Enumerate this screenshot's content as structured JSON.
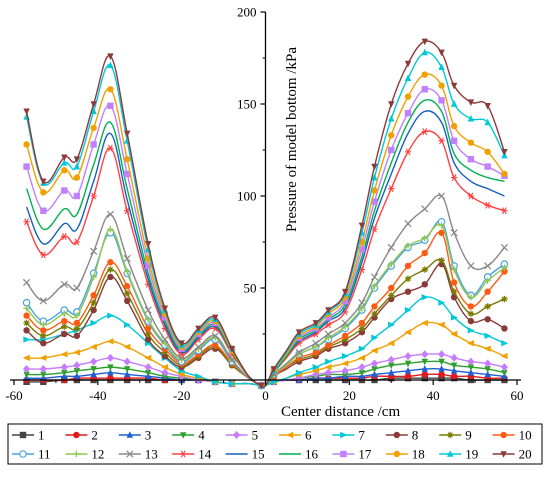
{
  "chart_data": {
    "type": "line",
    "title": "",
    "xlabel": "Center distance /cm",
    "ylabel": "Pressure of model bottom /kPa",
    "xlim": [
      -60,
      60
    ],
    "ylim": [
      0,
      200
    ],
    "xticks": [
      -60,
      -40,
      -20,
      0,
      20,
      40,
      60
    ],
    "yticks": [
      0,
      50,
      100,
      150,
      200
    ],
    "grid": false,
    "legend_position": "bottom",
    "x": [
      -57,
      -53,
      -48,
      -45,
      -41,
      -37,
      -33,
      -28,
      -24,
      -20,
      -16,
      -12,
      -8,
      -4,
      -1,
      0,
      2,
      5,
      8,
      12,
      15,
      19,
      23,
      26,
      30,
      34,
      38,
      42,
      45,
      49,
      53,
      57
    ],
    "series": [
      {
        "name": "1",
        "color": "#444444",
        "marker": "square",
        "values": [
          -1,
          -1,
          0,
          0,
          0,
          0,
          0,
          0,
          0,
          0,
          0,
          -1,
          -2,
          -2,
          -3,
          -3,
          -1,
          0,
          0,
          0,
          0,
          0,
          0,
          0,
          1,
          1,
          1,
          1,
          1,
          0,
          0,
          0
        ]
      },
      {
        "name": "2",
        "color": "#e31a1c",
        "marker": "circle",
        "values": [
          0,
          0,
          0,
          1,
          1,
          1,
          1,
          1,
          0,
          0,
          0,
          -1,
          -2,
          -2,
          -3,
          -3,
          -1,
          0,
          0,
          1,
          1,
          1,
          1,
          2,
          2,
          2,
          3,
          3,
          2,
          2,
          1,
          1
        ]
      },
      {
        "name": "3",
        "color": "#1f5fd6",
        "marker": "triangle-up",
        "values": [
          1,
          1,
          2,
          2,
          3,
          4,
          3,
          2,
          1,
          0,
          0,
          -1,
          -2,
          -2,
          -3,
          -3,
          -1,
          0,
          0,
          1,
          1,
          2,
          2,
          3,
          4,
          5,
          6,
          6,
          5,
          4,
          3,
          2
        ]
      },
      {
        "name": "4",
        "color": "#2ca02c",
        "marker": "triangle-down",
        "values": [
          3,
          3,
          4,
          5,
          6,
          7,
          6,
          4,
          2,
          1,
          0,
          -1,
          -2,
          -2,
          -3,
          -3,
          -1,
          0,
          1,
          2,
          3,
          3,
          4,
          6,
          8,
          9,
          10,
          10,
          8,
          7,
          6,
          4
        ]
      },
      {
        "name": "5",
        "color": "#c77cff",
        "marker": "diamond",
        "values": [
          6,
          6,
          7,
          8,
          10,
          12,
          10,
          7,
          4,
          2,
          0,
          -1,
          -2,
          -2,
          -3,
          -3,
          -1,
          0,
          1,
          3,
          4,
          5,
          7,
          9,
          11,
          13,
          14,
          14,
          12,
          10,
          9,
          7
        ]
      },
      {
        "name": "6",
        "color": "#f0a000",
        "marker": "tri-left",
        "values": [
          12,
          12,
          14,
          15,
          18,
          21,
          18,
          12,
          7,
          3,
          1,
          -1,
          -2,
          -2,
          -3,
          -3,
          -1,
          1,
          3,
          5,
          7,
          9,
          12,
          16,
          20,
          26,
          31,
          30,
          25,
          20,
          17,
          13
        ]
      },
      {
        "name": "7",
        "color": "#00c8d8",
        "marker": "tri-right",
        "values": [
          22,
          22,
          25,
          27,
          31,
          35,
          30,
          20,
          12,
          5,
          2,
          -1,
          -2,
          -2,
          -3,
          -3,
          -1,
          1,
          4,
          7,
          10,
          13,
          17,
          23,
          30,
          38,
          45,
          42,
          34,
          27,
          24,
          20
        ]
      },
      {
        "name": "8",
        "color": "#8b3a3a",
        "marker": "circle",
        "values": [
          27,
          20,
          25,
          24,
          38,
          56,
          43,
          22,
          13,
          7,
          12,
          17,
          8,
          1,
          -3,
          -3,
          2,
          6,
          10,
          13,
          17,
          20,
          26,
          34,
          44,
          48,
          52,
          63,
          45,
          32,
          33,
          28
        ]
      },
      {
        "name": "9",
        "color": "#7a7a00",
        "marker": "star",
        "values": [
          31,
          24,
          29,
          28,
          42,
          60,
          47,
          25,
          15,
          8,
          13,
          18,
          8,
          1,
          -3,
          -3,
          2,
          7,
          11,
          14,
          18,
          22,
          28,
          36,
          46,
          55,
          60,
          65,
          48,
          36,
          40,
          44
        ]
      },
      {
        "name": "10",
        "color": "#ff5a14",
        "marker": "circle",
        "values": [
          35,
          27,
          32,
          31,
          46,
          64,
          51,
          28,
          17,
          9,
          14,
          19,
          9,
          1,
          -3,
          -3,
          2,
          7,
          12,
          15,
          19,
          24,
          31,
          40,
          50,
          62,
          69,
          80,
          53,
          40,
          48,
          59
        ]
      },
      {
        "name": "11",
        "color": "#4aa3df",
        "marker": "circle-open",
        "values": [
          42,
          32,
          38,
          37,
          58,
          80,
          58,
          32,
          19,
          10,
          16,
          22,
          10,
          1,
          -3,
          -3,
          3,
          8,
          14,
          18,
          22,
          28,
          38,
          50,
          62,
          72,
          76,
          86,
          62,
          46,
          56,
          63
        ]
      },
      {
        "name": "12",
        "color": "#90c850",
        "marker": "cross",
        "values": [
          39,
          30,
          36,
          35,
          56,
          82,
          59,
          33,
          20,
          11,
          17,
          23,
          11,
          1,
          -3,
          -3,
          3,
          8,
          14,
          18,
          23,
          29,
          39,
          51,
          63,
          73,
          77,
          84,
          60,
          45,
          54,
          61
        ]
      },
      {
        "name": "13",
        "color": "#888888",
        "marker": "x",
        "values": [
          53,
          43,
          52,
          50,
          70,
          90,
          66,
          38,
          22,
          12,
          18,
          24,
          11,
          1,
          -3,
          -3,
          3,
          9,
          15,
          20,
          25,
          31,
          42,
          56,
          72,
          85,
          93,
          100,
          80,
          62,
          62,
          72
        ]
      },
      {
        "name": "14",
        "color": "#ff4040",
        "marker": "asterisk",
        "values": [
          86,
          68,
          78,
          75,
          100,
          126,
          92,
          52,
          28,
          14,
          22,
          28,
          14,
          2,
          -3,
          -3,
          4,
          12,
          20,
          25,
          30,
          37,
          60,
          82,
          104,
          124,
          135,
          130,
          110,
          100,
          95,
          92
        ]
      },
      {
        "name": "15",
        "color": "#1560bd",
        "marker": "none",
        "values": [
          94,
          74,
          85,
          82,
          108,
          134,
          98,
          55,
          30,
          15,
          23,
          29,
          15,
          2,
          -3,
          -3,
          4,
          13,
          21,
          26,
          32,
          39,
          64,
          88,
          112,
          134,
          146,
          140,
          118,
          108,
          104,
          100
        ]
      },
      {
        "name": "16",
        "color": "#00b050",
        "marker": "none",
        "values": [
          104,
          82,
          93,
          90,
          117,
          140,
          104,
          58,
          32,
          16,
          24,
          30,
          15,
          2,
          -3,
          -3,
          4,
          13,
          22,
          27,
          33,
          41,
          67,
          92,
          118,
          140,
          152,
          146,
          123,
          114,
          110,
          108
        ]
      },
      {
        "name": "17",
        "color": "#c080ff",
        "marker": "square",
        "values": [
          116,
          92,
          103,
          100,
          128,
          149,
          112,
          62,
          34,
          17,
          25,
          31,
          16,
          2,
          -3,
          -3,
          5,
          14,
          23,
          28,
          34,
          43,
          71,
          97,
          125,
          145,
          158,
          152,
          130,
          120,
          116,
          111
        ]
      },
      {
        "name": "18",
        "color": "#f0a000",
        "marker": "circle",
        "values": [
          128,
          102,
          114,
          110,
          137,
          158,
          120,
          66,
          36,
          18,
          26,
          32,
          16,
          2,
          -3,
          -3,
          5,
          14,
          24,
          29,
          36,
          45,
          75,
          103,
          133,
          154,
          166,
          160,
          138,
          129,
          124,
          112
        ]
      },
      {
        "name": "19",
        "color": "#00c8d8",
        "marker": "triangle-up",
        "values": [
          143,
          107,
          118,
          116,
          146,
          171,
          130,
          71,
          38,
          19,
          27,
          33,
          17,
          2,
          -3,
          -3,
          5,
          15,
          25,
          30,
          37,
          47,
          80,
          110,
          142,
          164,
          178,
          170,
          150,
          142,
          140,
          122
        ]
      },
      {
        "name": "20",
        "color": "#8b3a3a",
        "marker": "triangle-down",
        "values": [
          146,
          108,
          121,
          120,
          150,
          176,
          134,
          74,
          39,
          20,
          28,
          34,
          17,
          2,
          -3,
          -3,
          6,
          16,
          26,
          31,
          38,
          48,
          84,
          116,
          150,
          172,
          184,
          178,
          160,
          151,
          149,
          124
        ]
      }
    ]
  }
}
